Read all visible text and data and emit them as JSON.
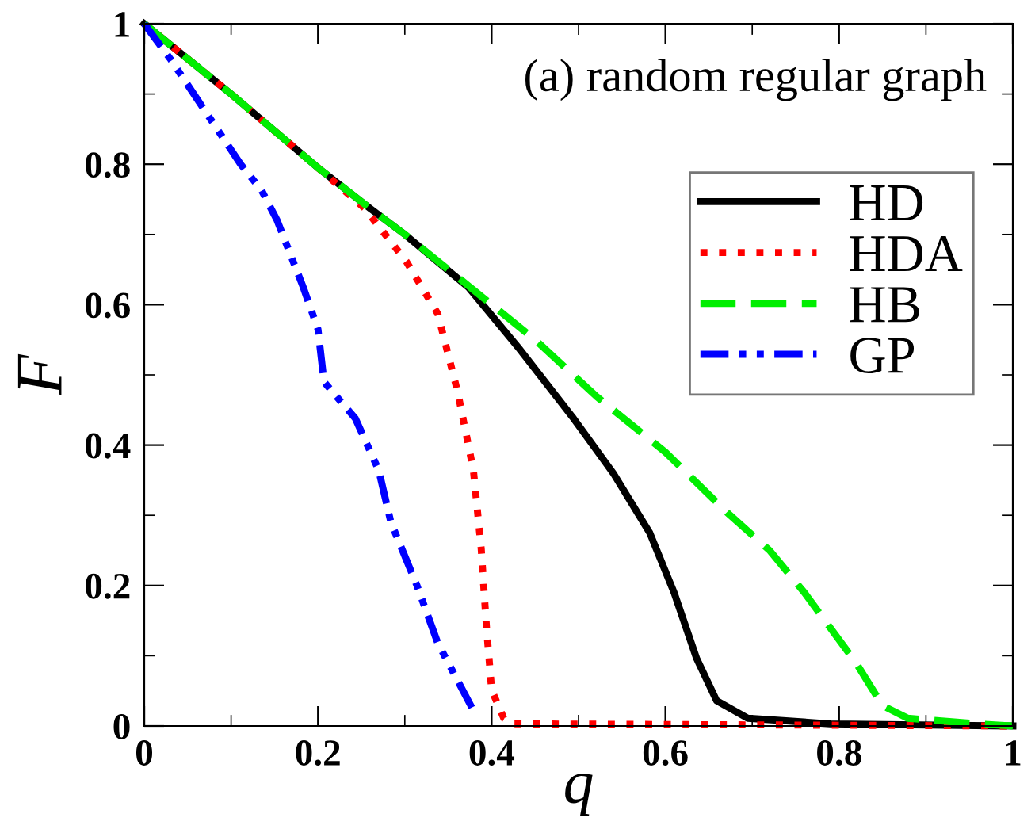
{
  "chart_data": {
    "type": "line",
    "xlabel": "q",
    "ylabel": "F",
    "annotations": [
      "(a) random regular graph"
    ],
    "xlim": [
      0,
      1
    ],
    "ylim": [
      0,
      1
    ],
    "xticks": [
      0,
      0.2,
      0.4,
      0.6,
      0.8,
      1
    ],
    "yticks": [
      0,
      0.2,
      0.4,
      0.6,
      0.8,
      1
    ],
    "grid": false,
    "legend": "right",
    "series": [
      {
        "name": "HD",
        "color": "#000000",
        "line_style": "solid",
        "x": [
          0,
          0.1,
          0.2,
          0.26,
          0.3,
          0.373,
          0.43,
          0.493,
          0.54,
          0.582,
          0.61,
          0.636,
          0.659,
          0.695,
          0.79,
          1
        ],
        "values": [
          1,
          0.9,
          0.795,
          0.737,
          0.7,
          0.625,
          0.54,
          0.44,
          0.36,
          0.275,
          0.19,
          0.096,
          0.036,
          0.011,
          0.003,
          0
        ]
      },
      {
        "name": "HDA",
        "color": "#ff0000",
        "line_style": "dotted",
        "x": [
          0,
          0.1,
          0.2,
          0.254,
          0.302,
          0.338,
          0.361,
          0.379,
          0.388,
          0.394,
          0.4,
          0.414,
          0.425,
          1
        ],
        "values": [
          1,
          0.9,
          0.795,
          0.737,
          0.661,
          0.587,
          0.475,
          0.364,
          0.252,
          0.141,
          0.051,
          0.011,
          0.003,
          0
        ]
      },
      {
        "name": "HB",
        "color": "#00ee00",
        "line_style": "dashed",
        "x": [
          0,
          0.1,
          0.2,
          0.26,
          0.3,
          0.373,
          0.45,
          0.521,
          0.6,
          0.671,
          0.72,
          0.76,
          0.82,
          0.85,
          0.879,
          0.96,
          1
        ],
        "values": [
          1,
          0.9,
          0.795,
          0.737,
          0.7,
          0.627,
          0.55,
          0.469,
          0.39,
          0.304,
          0.25,
          0.19,
          0.089,
          0.029,
          0.011,
          0.003,
          0
        ]
      },
      {
        "name": "GP",
        "color": "#0000ff",
        "line_style": "dashdot",
        "x": [
          0,
          0.03,
          0.111,
          0.135,
          0.153,
          0.183,
          0.2,
          0.207,
          0.243,
          0.27,
          0.284,
          0.314,
          0.338,
          0.379
        ],
        "values": [
          1,
          0.95,
          0.8,
          0.763,
          0.72,
          0.625,
          0.565,
          0.49,
          0.438,
          0.364,
          0.29,
          0.2,
          0.118,
          0.022
        ]
      }
    ]
  }
}
